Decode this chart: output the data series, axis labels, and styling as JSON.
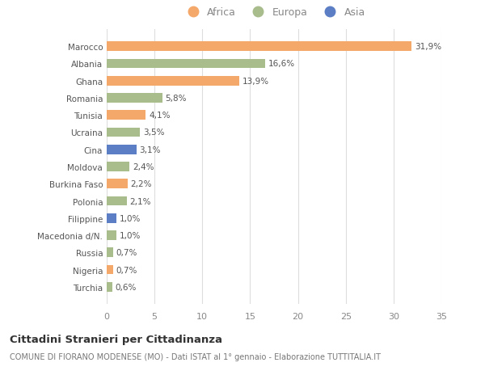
{
  "countries": [
    "Marocco",
    "Albania",
    "Ghana",
    "Romania",
    "Tunisia",
    "Ucraina",
    "Cina",
    "Moldova",
    "Burkina Faso",
    "Polonia",
    "Filippine",
    "Macedonia d/N.",
    "Russia",
    "Nigeria",
    "Turchia"
  ],
  "values": [
    31.9,
    16.6,
    13.9,
    5.8,
    4.1,
    3.5,
    3.1,
    2.4,
    2.2,
    2.1,
    1.0,
    1.0,
    0.7,
    0.7,
    0.6
  ],
  "labels": [
    "31,9%",
    "16,6%",
    "13,9%",
    "5,8%",
    "4,1%",
    "3,5%",
    "3,1%",
    "2,4%",
    "2,2%",
    "2,1%",
    "1,0%",
    "1,0%",
    "0,7%",
    "0,7%",
    "0,6%"
  ],
  "continents": [
    "Africa",
    "Europa",
    "Africa",
    "Europa",
    "Africa",
    "Europa",
    "Asia",
    "Europa",
    "Africa",
    "Europa",
    "Asia",
    "Europa",
    "Europa",
    "Africa",
    "Europa"
  ],
  "colors": {
    "Africa": "#F4A96A",
    "Europa": "#A8BC8C",
    "Asia": "#5B7EC4"
  },
  "background_color": "#ffffff",
  "title": "Cittadini Stranieri per Cittadinanza",
  "subtitle": "COMUNE DI FIORANO MODENESE (MO) - Dati ISTAT al 1° gennaio - Elaborazione TUTTITALIA.IT",
  "xlim": [
    0,
    35
  ],
  "xticks": [
    0,
    5,
    10,
    15,
    20,
    25,
    30,
    35
  ]
}
